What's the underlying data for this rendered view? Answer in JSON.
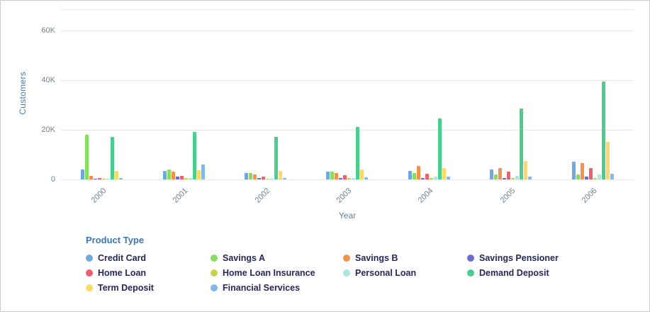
{
  "chart_data": {
    "type": "bar",
    "title": "",
    "xlabel": "Year",
    "ylabel": "Customers",
    "legend_title": "Product Type",
    "categories": [
      "2000",
      "2001",
      "2002",
      "2003",
      "2004",
      "2005",
      "2006"
    ],
    "y_ticks": [
      {
        "label": "0",
        "value": 0
      },
      {
        "label": "20K",
        "value": 20000
      },
      {
        "label": "40K",
        "value": 40000
      },
      {
        "label": "60K",
        "value": 60000
      }
    ],
    "ylim": [
      0,
      60000
    ],
    "grid": true,
    "legend_position": "bottom",
    "series": [
      {
        "name": "Credit Card",
        "color": "#6FA8DC",
        "values": [
          4000,
          3500,
          2500,
          3000,
          3500,
          4000,
          7000
        ]
      },
      {
        "name": "Savings A",
        "color": "#85DE5E",
        "values": [
          18000,
          4000,
          2500,
          3000,
          2500,
          2000,
          2000
        ]
      },
      {
        "name": "Savings B",
        "color": "#F5914D",
        "values": [
          1500,
          3000,
          2000,
          2500,
          5500,
          4500,
          6500
        ]
      },
      {
        "name": "Savings Pensioner",
        "color": "#6A6AD4",
        "values": [
          300,
          1000,
          500,
          600,
          700,
          700,
          1200
        ]
      },
      {
        "name": "Home Loan",
        "color": "#ED5F6E",
        "values": [
          700,
          1500,
          1000,
          1800,
          2400,
          3000,
          4500
        ]
      },
      {
        "name": "Home Loan Insurance",
        "color": "#CBD14B",
        "values": [
          300,
          700,
          400,
          500,
          600,
          600,
          700
        ]
      },
      {
        "name": "Personal Loan",
        "color": "#A8E8DE",
        "values": [
          300,
          600,
          400,
          600,
          1000,
          1500,
          2000
        ]
      },
      {
        "name": "Demand Deposit",
        "color": "#49CE8D",
        "values": [
          17000,
          19000,
          17000,
          21000,
          24500,
          28500,
          39500
        ]
      },
      {
        "name": "Term Deposit",
        "color": "#FFD964",
        "values": [
          3500,
          3700,
          3500,
          4000,
          4500,
          7500,
          15000
        ]
      },
      {
        "name": "Financial Services",
        "color": "#82B8EA",
        "values": [
          600,
          6000,
          600,
          800,
          1000,
          1000,
          2200
        ]
      }
    ]
  }
}
